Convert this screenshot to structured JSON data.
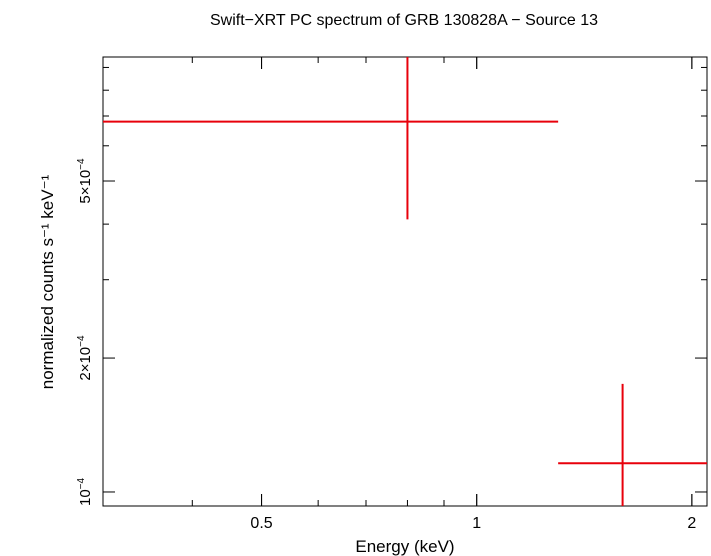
{
  "chart_data": {
    "type": "scatter",
    "title": "Swift−XRT PC spectrum of GRB 130828A − Source 13",
    "xlabel": "Energy (keV)",
    "ylabel": "normalized counts s⁻¹ keV⁻¹",
    "xscale": "log",
    "yscale": "log",
    "xlim": [
      0.3,
      2.1
    ],
    "ylim": [
      9.3e-05,
      0.00095
    ],
    "x_major_ticks": [
      {
        "value": 0.5,
        "label": "0.5"
      },
      {
        "value": 1,
        "label": "1"
      },
      {
        "value": 2,
        "label": "2"
      }
    ],
    "y_major_ticks": [
      {
        "value": 0.0001,
        "mantissa": "10",
        "exponent": "−4"
      },
      {
        "value": 0.0002,
        "mantissa": "2×10",
        "exponent": "−4"
      },
      {
        "value": 0.0005,
        "mantissa": "5×10",
        "exponent": "−4"
      }
    ],
    "grid": false,
    "color": "#e8000b",
    "series": [
      {
        "points": [
          {
            "x": 0.8,
            "xlow": 0.3,
            "xhigh": 1.3,
            "y": 0.00068,
            "ylow": 0.00041,
            "yhigh": 0.00095
          },
          {
            "x": 1.6,
            "xlow": 1.3,
            "xhigh": 2.1,
            "y": 0.000116,
            "ylow": 9.3e-05,
            "yhigh": 0.000175
          }
        ]
      }
    ]
  }
}
